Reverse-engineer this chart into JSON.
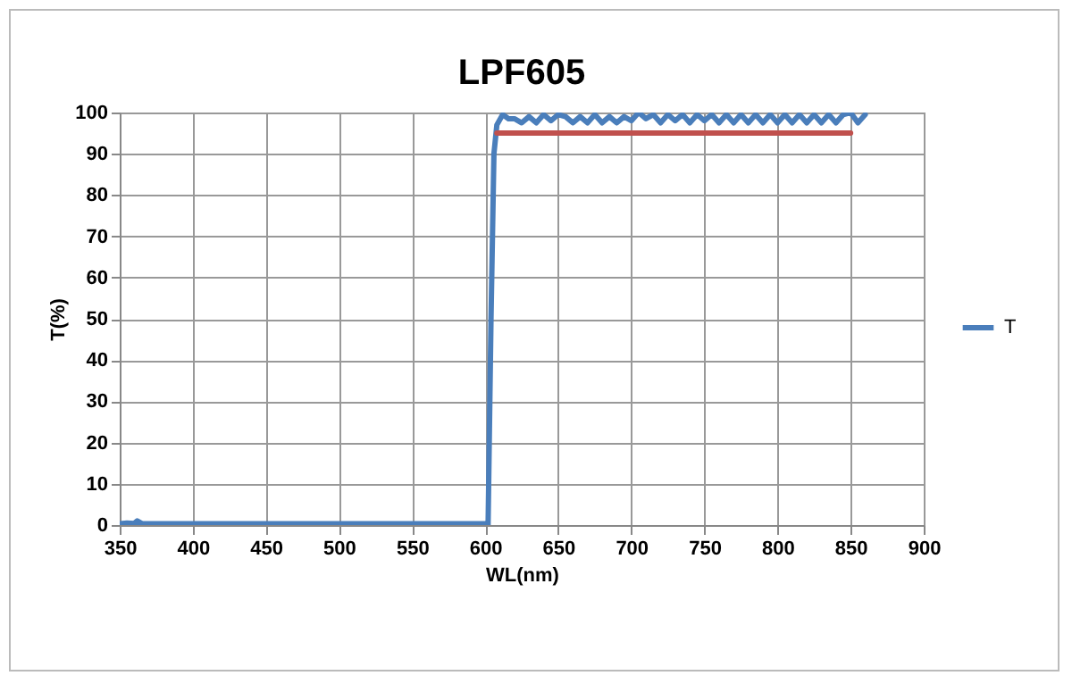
{
  "chart_data": {
    "type": "line",
    "title": "LPF605",
    "xlabel": "WL(nm)",
    "ylabel": "T(%)",
    "xlim": [
      350,
      900
    ],
    "xticks": [
      350,
      400,
      450,
      500,
      550,
      600,
      650,
      700,
      750,
      800,
      850,
      900
    ],
    "ylim": [
      0,
      100
    ],
    "yticks": [
      0,
      10,
      20,
      30,
      40,
      50,
      60,
      70,
      80,
      90,
      100
    ],
    "grid": true,
    "legend": "right",
    "line_style": "solid",
    "marker": "none",
    "series": [
      {
        "name": "T",
        "color": "#4a7ebb",
        "x": [
          350,
          355,
          360,
          362,
          365,
          370,
          380,
          400,
          450,
          500,
          550,
          590,
          600,
          602,
          604,
          606,
          608,
          612,
          616,
          620,
          625,
          630,
          635,
          640,
          645,
          650,
          655,
          660,
          665,
          670,
          675,
          680,
          685,
          690,
          695,
          700,
          705,
          710,
          715,
          720,
          725,
          730,
          735,
          740,
          745,
          750,
          755,
          760,
          765,
          770,
          775,
          780,
          785,
          790,
          795,
          800,
          805,
          810,
          815,
          820,
          825,
          830,
          835,
          840,
          845,
          850,
          855,
          860
        ],
        "values": [
          0.3,
          0.5,
          0.4,
          1,
          0.4,
          0.3,
          0.3,
          0.3,
          0.3,
          0.3,
          0.3,
          0.3,
          0.3,
          0,
          50,
          90,
          97,
          99.5,
          98.5,
          98.5,
          97.5,
          99,
          97.5,
          99.5,
          98,
          99.5,
          99,
          97.5,
          99,
          97.5,
          99.5,
          97.5,
          99,
          97.5,
          99,
          98,
          100,
          98.5,
          99.5,
          97.5,
          99.5,
          98,
          99.5,
          97.5,
          99.5,
          98,
          99.5,
          97.5,
          99.5,
          97.5,
          99.5,
          97.5,
          99.5,
          97.5,
          99.5,
          97.5,
          99.5,
          97.5,
          99.5,
          97.5,
          99.5,
          97.5,
          99.5,
          97.5,
          99.5,
          100,
          97.5,
          99.5
        ]
      },
      {
        "color": "#c0504d",
        "x": [
          608,
          850
        ],
        "values": [
          95,
          95
        ]
      }
    ]
  }
}
